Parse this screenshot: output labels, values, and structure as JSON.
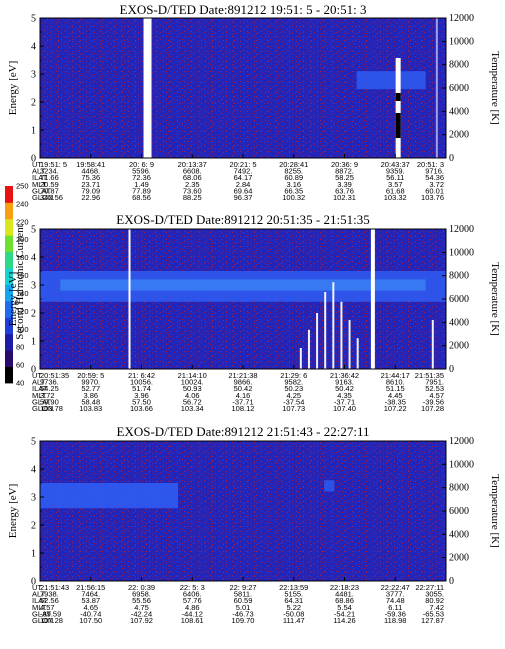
{
  "chart_data": [
    {
      "type": "heatmap",
      "title": "EXOS-D/TED   Date:891212  19:51: 5 - 20:51: 3",
      "ylabel": "Energy [eV]",
      "y2label": "Temperature [K]",
      "ylim": [
        0,
        5
      ],
      "y2lim": [
        0,
        12000
      ],
      "yticks": [
        "0",
        "1",
        "2",
        "3",
        "4",
        "5"
      ],
      "y2ticks": [
        "0",
        "2000",
        "4000",
        "6000",
        "8000",
        "10000",
        "12000"
      ],
      "table": {
        "rows": [
          "UT",
          "ALT",
          "ILAT",
          "MLT",
          "GLAT",
          "GLON"
        ],
        "columns": [
          [
            "19:51: 5",
            "3234.",
            "71.66",
            "20.59",
            "70.87",
            "342.56"
          ],
          [
            "19:58:41",
            "4468.",
            "75.36",
            "23.71",
            "79.09",
            "22.96"
          ],
          [
            "20: 6: 9",
            "5596.",
            "72.36",
            "1.49",
            "77.89",
            "68.56"
          ],
          [
            "20:13:37",
            "6608.",
            "68.06",
            "2.35",
            "73.60",
            "88.25"
          ],
          [
            "20:21: 5",
            "7492.",
            "64.17",
            "2.84",
            "69.64",
            "96.37"
          ],
          [
            "20:28:41",
            "8255.",
            "60.89",
            "3.16",
            "66.35",
            "100.32"
          ],
          [
            "20:36: 9",
            "8872.",
            "58.25",
            "3.39",
            "63.76",
            "102.31"
          ],
          [
            "20:43:37",
            "9359.",
            "56.11",
            "3.57",
            "61.68",
            "103.32"
          ],
          [
            "20:51: 3",
            "9716.",
            "54.36",
            "3.72",
            "60.01",
            "103.76"
          ]
        ]
      }
    },
    {
      "type": "heatmap",
      "title": "EXOS-D/TED   Date:891212  20:51:35 - 21:51:35",
      "ylabel": "Energy [eV]",
      "y2label": "Temperature [K]",
      "ylim": [
        0,
        5
      ],
      "y2lim": [
        0,
        12000
      ],
      "yticks": [
        "0",
        "1",
        "2",
        "3",
        "4",
        "5"
      ],
      "y2ticks": [
        "0",
        "2000",
        "4000",
        "6000",
        "8000",
        "10000",
        "12000"
      ],
      "table": {
        "rows": [
          "UT",
          "ALT",
          "ILAT",
          "MLT",
          "GLAT",
          "GLON"
        ],
        "columns": [
          [
            "20:51:35",
            "9736.",
            "54.25",
            "3.72",
            "59.90",
            "103.78"
          ],
          [
            "20:59: 5",
            "9970.",
            "52.77",
            "3.86",
            "58.48",
            "103.83"
          ],
          [
            "21: 6:42",
            "10056.",
            "51.74",
            "3.96",
            "57.50",
            "103.66"
          ],
          [
            "21:14:10",
            "10024.",
            "50.93",
            "4.06",
            "56.72",
            "103.34"
          ],
          [
            "21:21:38",
            "9866.",
            "50.42",
            "4.16",
            "-37.71",
            "108.12"
          ],
          [
            "21:29: 6",
            "9582.",
            "50.23",
            "4.25",
            "-37.54",
            "107.73"
          ],
          [
            "21:36:42",
            "9163.",
            "50.42",
            "4.35",
            "-37.71",
            "107.40"
          ],
          [
            "21:44:17",
            "8610.",
            "51.15",
            "4.45",
            "-38.35",
            "107.22"
          ],
          [
            "21:51:35",
            "7951.",
            "52.53",
            "4.57",
            "-39.56",
            "107.28"
          ]
        ]
      }
    },
    {
      "type": "heatmap",
      "title": "EXOS-D/TED   Date:891212  21:51:43 - 22:27:11",
      "ylabel": "Energy [eV]",
      "y2label": "Temperature [K]",
      "ylim": [
        0,
        5
      ],
      "y2lim": [
        0,
        12000
      ],
      "yticks": [
        "0",
        "1",
        "2",
        "3",
        "4",
        "5"
      ],
      "y2ticks": [
        "0",
        "2000",
        "4000",
        "6000",
        "8000",
        "10000",
        "12000"
      ],
      "table": {
        "rows": [
          "UT",
          "ALT",
          "ILAT",
          "MLT",
          "GLAT",
          "GLON"
        ],
        "columns": [
          [
            "21:51:43",
            "7938.",
            "52.56",
            "4.57",
            "-39.59",
            "107.28"
          ],
          [
            "21:56:15",
            "7464.",
            "53.87",
            "4.65",
            "-40.74",
            "107.50"
          ],
          [
            "22: 0:39",
            "6958.",
            "55.56",
            "4.75",
            "-42.24",
            "107.92"
          ],
          [
            "22: 5: 3",
            "6406.",
            "57.76",
            "4.86",
            "-44.12",
            "108.61"
          ],
          [
            "22: 9:27",
            "5811.",
            "60.59",
            "5.01",
            "-46.73",
            "109.70"
          ],
          [
            "22:13:59",
            "5155.",
            "64.31",
            "5.22",
            "-50.08",
            "111.47"
          ],
          [
            "22:18:23",
            "4481.",
            "68.86",
            "5.54",
            "-54.21",
            "114.26"
          ],
          [
            "22:22:47",
            "3777.",
            "74.48",
            "6.11",
            "-59.36",
            "118.98"
          ],
          [
            "22:27:11",
            "3055.",
            "80.92",
            "7.42",
            "-65.53",
            "127.87"
          ]
        ]
      }
    }
  ],
  "colorbar": {
    "label": "Second Harmonic Current",
    "ticks": [
      "40",
      "60",
      "80",
      "100",
      "120",
      "140",
      "160",
      "180",
      "200",
      "220",
      "240",
      "250"
    ],
    "colors": [
      "#000000",
      "#2a0a6a",
      "#1c1ca6",
      "#1f3fd8",
      "#1e6cf0",
      "#14a5ee",
      "#18d2d2",
      "#2ed88a",
      "#6ee02e",
      "#d8e81a",
      "#f8a012",
      "#e81212"
    ]
  },
  "colors": {
    "background": "#2225b8",
    "speckle": "#a31c46",
    "band": "#2e5cf2",
    "gap": "#ffffff"
  }
}
